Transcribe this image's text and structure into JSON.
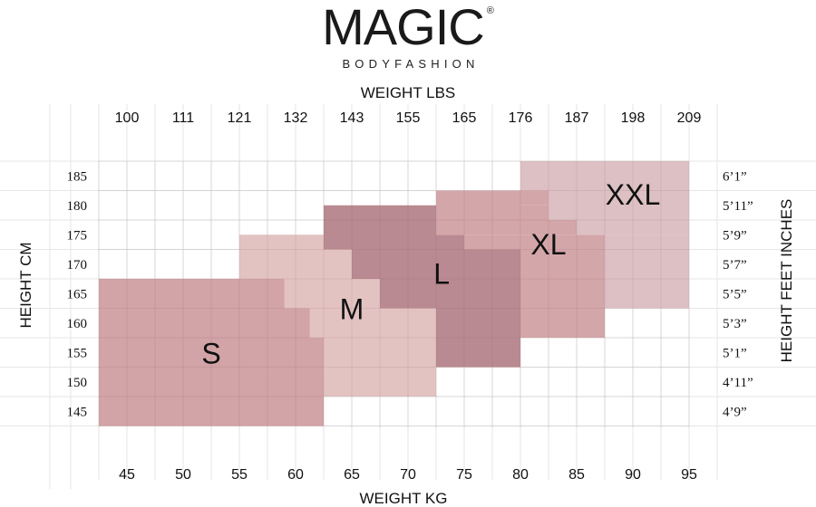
{
  "logo": {
    "brand": "MAGIC",
    "registered": "®",
    "subtitle": "BODYFASHION"
  },
  "chart_data": {
    "type": "heatmap",
    "title": "",
    "x_top_label": "WEIGHT LBS",
    "x_top_ticks": [
      "100",
      "111",
      "121",
      "132",
      "143",
      "155",
      "165",
      "176",
      "187",
      "198",
      "209"
    ],
    "xlabel": "WEIGHT KG",
    "x_ticks": [
      45,
      50,
      55,
      60,
      65,
      70,
      75,
      80,
      85,
      90,
      95
    ],
    "ylabel": "HEIGHT CM",
    "y_ticks": [
      185,
      180,
      175,
      170,
      165,
      160,
      155,
      150,
      145
    ],
    "y_right_label": "HEIGHT FEET INCHES",
    "y_right_ticks": [
      "6’1”",
      "5’11”",
      "5’9”",
      "5’7”",
      "5’5”",
      "5’3”",
      "5’1”",
      "4’11”",
      "4’9”"
    ],
    "xlim": [
      40,
      100
    ],
    "ylim": [
      137.5,
      187.5
    ],
    "grid": true,
    "sizes": [
      {
        "name": "S",
        "color": "#d2a3a7",
        "regions_kg_cm": [
          [
            42.5,
            62.5,
            142.5,
            167.5
          ]
        ]
      },
      {
        "name": "M",
        "color": "#e3c2c2",
        "regions_kg_cm": [
          [
            55,
            62.5,
            172.5,
            175
          ],
          [
            55,
            65,
            167.5,
            172.5
          ],
          [
            59,
            67.5,
            162.5,
            167.5
          ],
          [
            61.25,
            72.5,
            157.5,
            162.5
          ],
          [
            62.5,
            72.5,
            147.5,
            157.5
          ]
        ]
      },
      {
        "name": "L",
        "color": "#b98a91",
        "regions_kg_cm": [
          [
            62.5,
            72.5,
            172.5,
            180
          ],
          [
            65,
            72.5,
            167.5,
            172.5
          ],
          [
            67.5,
            72.5,
            162.5,
            167.5
          ],
          [
            72.5,
            80,
            152.5,
            172.5
          ],
          [
            72.5,
            75,
            172.5,
            175
          ]
        ]
      },
      {
        "name": "XL",
        "color": "#d3a6aa",
        "regions_kg_cm": [
          [
            72.5,
            80,
            175,
            182.5
          ],
          [
            75,
            80,
            172.5,
            175
          ],
          [
            80,
            82.5,
            180,
            182.5
          ],
          [
            80,
            85,
            175,
            180
          ],
          [
            80,
            87.5,
            157.5,
            175
          ]
        ]
      },
      {
        "name": "XXL",
        "color": "#dcc0c3",
        "regions_kg_cm": [
          [
            80,
            95,
            182.5,
            187.5
          ],
          [
            82.5,
            95,
            177.5,
            182.5
          ],
          [
            85,
            95,
            175,
            177.5
          ],
          [
            87.5,
            95,
            162.5,
            175
          ]
        ]
      }
    ]
  }
}
